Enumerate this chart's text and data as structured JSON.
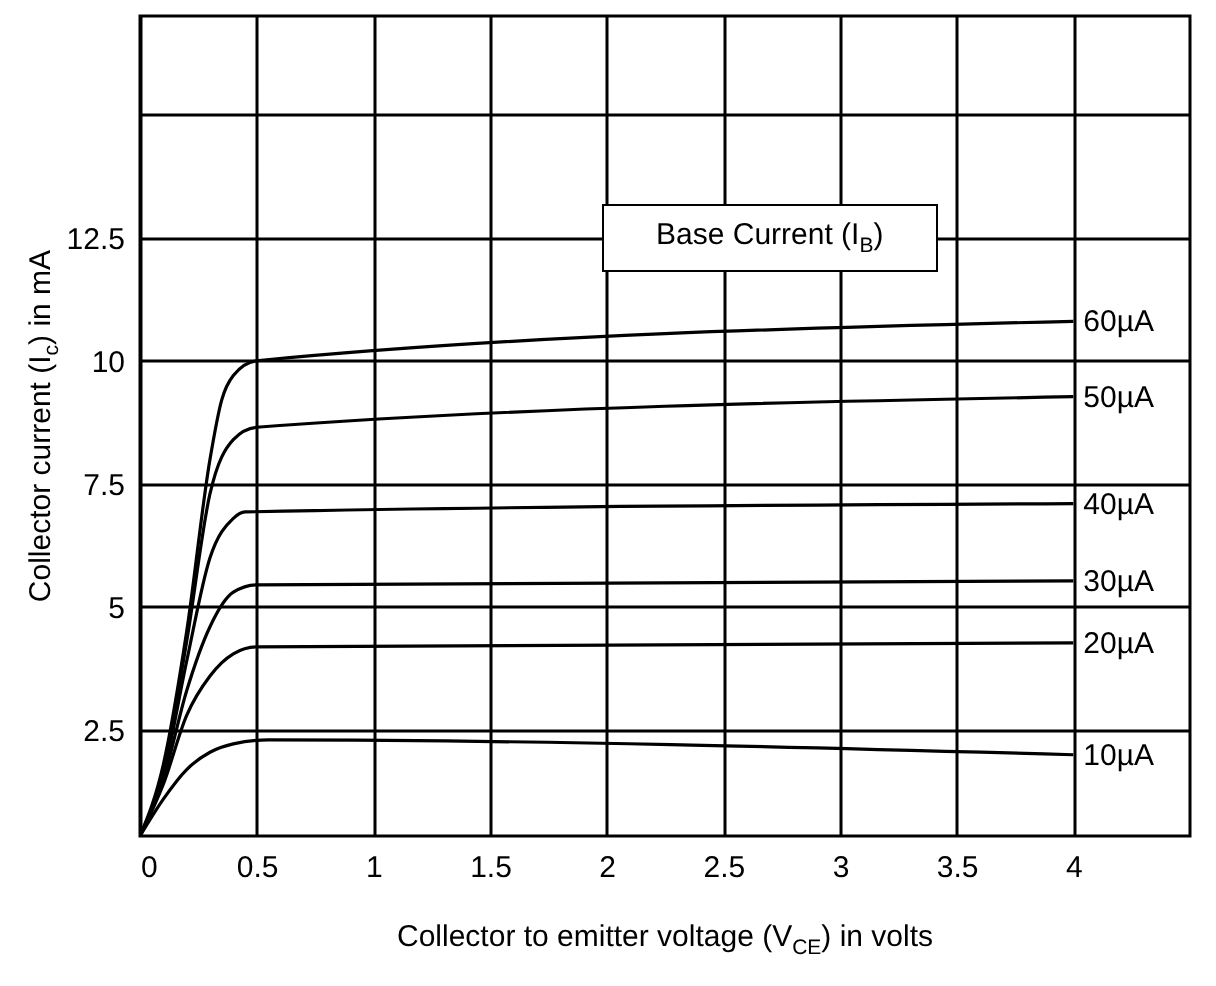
{
  "chart_data": {
    "type": "line",
    "xlabel": "Collector to emitter voltage (V$_{CE}$) in volts",
    "ylabel": "Collector current (I$_{c}$) in mA",
    "legend_title": "Base Current (I$_{B}$)",
    "xlim": [
      0,
      4.5
    ],
    "xticks": [
      0,
      0.5,
      1,
      1.5,
      2,
      2.5,
      3,
      3.5,
      4
    ],
    "ylim": [
      0.35,
      17
    ],
    "yticks": [
      2.5,
      5,
      7.5,
      10,
      12.5,
      {
        "value": 15,
        "label": null
      }
    ],
    "grid": true,
    "legend": false,
    "marker": "none",
    "line_style": "solid",
    "series": [
      {
        "name": "60µA",
        "color": "#000000",
        "x": [
          0,
          0.1,
          0.2,
          0.3,
          0.35,
          0.4,
          0.5,
          4
        ],
        "values": [
          0.35,
          1.8,
          4.5,
          8,
          9.2,
          9.7,
          10,
          10.8
        ]
      },
      {
        "name": "50µA",
        "color": "#000000",
        "x": [
          0,
          0.1,
          0.2,
          0.3,
          0.4,
          0.5,
          4
        ],
        "values": [
          0.35,
          1.7,
          4.3,
          7.3,
          8.4,
          8.65,
          9.27
        ]
      },
      {
        "name": "40µA",
        "color": "#000000",
        "x": [
          0,
          0.1,
          0.2,
          0.3,
          0.4,
          0.45,
          4
        ],
        "values": [
          0.35,
          1.6,
          3.9,
          6.0,
          6.8,
          6.93,
          7.1
        ]
      },
      {
        "name": "30µA",
        "color": "#000000",
        "x": [
          0,
          0.1,
          0.2,
          0.3,
          0.4,
          0.5,
          4
        ],
        "values": [
          0.35,
          1.5,
          3.3,
          4.6,
          5.3,
          5.45,
          5.53
        ]
      },
      {
        "name": "20µA",
        "color": "#000000",
        "x": [
          0,
          0.1,
          0.2,
          0.3,
          0.4,
          0.5,
          4
        ],
        "values": [
          0.35,
          1.4,
          2.8,
          3.6,
          4.05,
          4.19,
          4.27
        ]
      },
      {
        "name": "10µA",
        "color": "#000000",
        "x": [
          0,
          0.1,
          0.2,
          0.3,
          0.4,
          0.55,
          4
        ],
        "values": [
          0.35,
          1.1,
          1.7,
          2.05,
          2.22,
          2.3,
          2.0
        ]
      }
    ]
  }
}
